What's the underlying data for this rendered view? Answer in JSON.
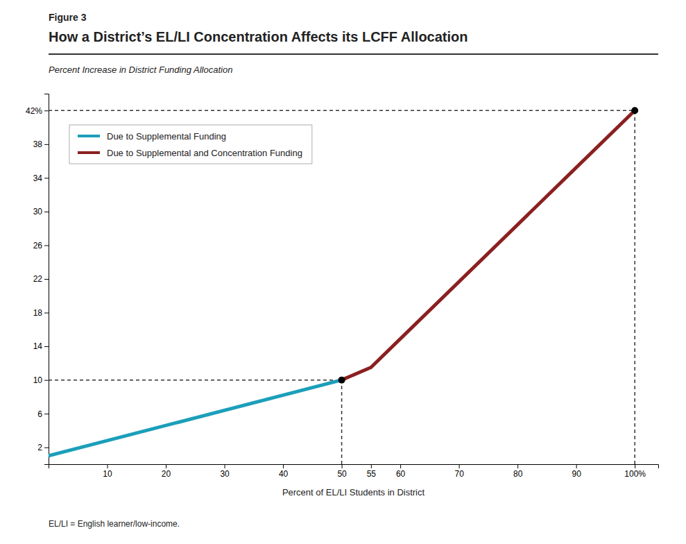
{
  "chart_data": {
    "type": "line",
    "figure_label": "Figure 3",
    "title": "How a District’s EL/LI Concentration Affects its LCFF Allocation",
    "ylabel": "Percent Increase in District Funding Allocation",
    "xlabel": "Percent of EL/LI Students in District",
    "footnote": "EL/LI = English learner/low-income.",
    "series": [
      {
        "name": "Due to Supplemental Funding",
        "color": "#1b9fba",
        "x": [
          0,
          50
        ],
        "values": [
          1,
          10
        ]
      },
      {
        "name": "Due to Supplemental and Concentration Funding",
        "color": "#8b2020",
        "x": [
          50,
          55,
          100
        ],
        "values": [
          10,
          11.5,
          42
        ]
      }
    ],
    "reference_lines": [
      {
        "x": [
          0,
          50
        ],
        "y": [
          10,
          10
        ]
      },
      {
        "x": [
          0,
          100
        ],
        "y": [
          42,
          42
        ]
      },
      {
        "x": [
          50,
          50
        ],
        "y": [
          0,
          10
        ]
      },
      {
        "x": [
          100,
          100
        ],
        "y": [
          0,
          42
        ]
      }
    ],
    "dot_points": [
      {
        "x": 50,
        "y": 10
      },
      {
        "x": 100,
        "y": 42
      }
    ],
    "xlim": [
      0,
      104
    ],
    "ylim": [
      0,
      44
    ],
    "xticks": [
      10,
      20,
      30,
      40,
      50,
      55,
      60,
      70,
      80,
      90,
      {
        "value": 100,
        "label": "100%"
      }
    ],
    "yticks": [
      2,
      6,
      10,
      14,
      18,
      22,
      26,
      30,
      34,
      38,
      {
        "value": 42,
        "label": "42%"
      }
    ],
    "grid": false,
    "legend": "upper left"
  }
}
